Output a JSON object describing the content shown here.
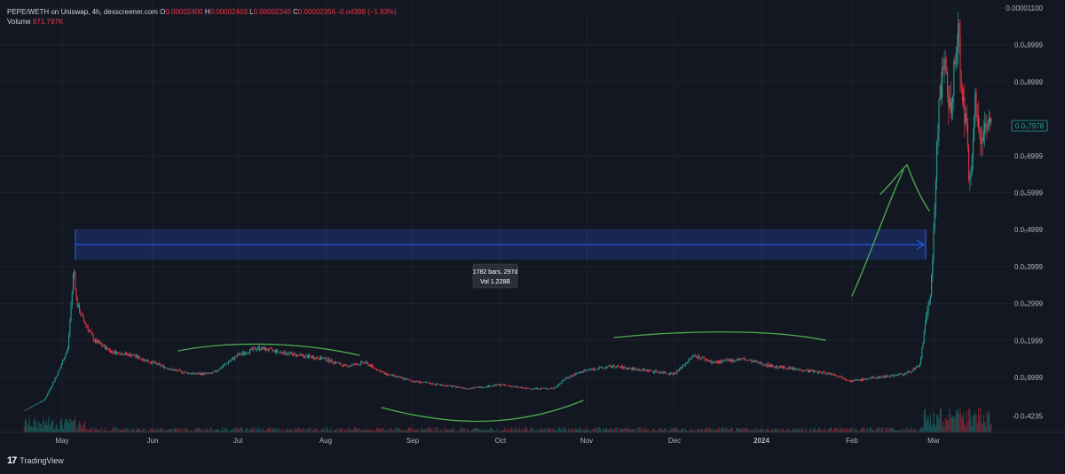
{
  "legend": {
    "symbol": "PEPE/WETH on Uniswap, 4h, dexscreener.com",
    "open_label": "O",
    "open": "0.00002400",
    "high_label": "H",
    "high": "0.00002403",
    "low_label": "L",
    "low": "0.00002340",
    "close_label": "C",
    "close": "0.00002356",
    "change": "-0.o4399 (−1.83%)",
    "volume_label": "Volume",
    "volume": "971.797K"
  },
  "footer": {
    "logo": "17",
    "brand": "TradingView"
  },
  "colors": {
    "background": "#131722",
    "up": "#26a69a",
    "down": "#f23645",
    "grid": "#1e222d",
    "annotation": "#4caf50",
    "measure": "#2962ff",
    "last_price": "#26a69a"
  },
  "measure": {
    "line1": "1782 bars, 297d",
    "line2": "Vol 1.228B"
  },
  "chart_data": {
    "type": "candlestick",
    "symbol": "PEPE/WETH",
    "timeframe": "4h",
    "x_ticks": [
      "May",
      "Jun",
      "Jul",
      "Aug",
      "Sep",
      "Oct",
      "Nov",
      "Dec",
      "2024",
      "Feb",
      "Mar"
    ],
    "y_ticks": [
      "0.00001100",
      "0.0₅9999",
      "0.0₅8999",
      "0.0₅6999",
      "0.0₅5999",
      "0.0₅4999",
      "0.0₅3999",
      "0.0₅2999",
      "0.0₅1999",
      "0.0₆9999",
      "-0.0₇4235"
    ],
    "y_tick_values": [
      1.1e-05,
      9.9999e-06,
      8.9999e-06,
      6.9999e-06,
      5.9999e-06,
      4.9999e-06,
      3.9999e-06,
      2.9999e-06,
      1.9999e-06,
      9.9999e-07,
      -4.235e-08
    ],
    "last_price_label": "0.0₅7978",
    "last_price": 7.978e-06,
    "ylim": [
      -2e-07,
      1.1e-05
    ],
    "close_series": [
      {
        "x": "Apr 18",
        "y": 1e-07
      },
      {
        "x": "Apr 25",
        "y": 4e-07
      },
      {
        "x": "Apr 30",
        "y": 1.2e-06
      },
      {
        "x": "May 3",
        "y": 1.8e-06
      },
      {
        "x": "May 5",
        "y": 4e-06
      },
      {
        "x": "May 6",
        "y": 3e-06
      },
      {
        "x": "May 8",
        "y": 2.6e-06
      },
      {
        "x": "May 12",
        "y": 2e-06
      },
      {
        "x": "May 18",
        "y": 1.7e-06
      },
      {
        "x": "May 25",
        "y": 1.6e-06
      },
      {
        "x": "Jun 1",
        "y": 1.4e-06
      },
      {
        "x": "Jun 8",
        "y": 1.2e-06
      },
      {
        "x": "Jun 15",
        "y": 1.1e-06
      },
      {
        "x": "Jun 22",
        "y": 1.1e-06
      },
      {
        "x": "Jul 1",
        "y": 1.6e-06
      },
      {
        "x": "Jul 8",
        "y": 1.8e-06
      },
      {
        "x": "Jul 15",
        "y": 1.7e-06
      },
      {
        "x": "Jul 22",
        "y": 1.6e-06
      },
      {
        "x": "Aug 1",
        "y": 1.5e-06
      },
      {
        "x": "Aug 8",
        "y": 1.3e-06
      },
      {
        "x": "Aug 15",
        "y": 1.4e-06
      },
      {
        "x": "Aug 22",
        "y": 1.1e-06
      },
      {
        "x": "Sep 1",
        "y": 9e-07
      },
      {
        "x": "Sep 10",
        "y": 8e-07
      },
      {
        "x": "Sep 20",
        "y": 7e-07
      },
      {
        "x": "Oct 1",
        "y": 8e-07
      },
      {
        "x": "Oct 10",
        "y": 7e-07
      },
      {
        "x": "Oct 20",
        "y": 7e-07
      },
      {
        "x": "Oct 25",
        "y": 1e-06
      },
      {
        "x": "Nov 1",
        "y": 1.2e-06
      },
      {
        "x": "Nov 10",
        "y": 1.3e-06
      },
      {
        "x": "Nov 20",
        "y": 1.2e-06
      },
      {
        "x": "Dec 1",
        "y": 1.1e-06
      },
      {
        "x": "Dec 8",
        "y": 1.6e-06
      },
      {
        "x": "Dec 15",
        "y": 1.4e-06
      },
      {
        "x": "Dec 25",
        "y": 1.5e-06
      },
      {
        "x": "Jan 5",
        "y": 1.3e-06
      },
      {
        "x": "Jan 15",
        "y": 1.2e-06
      },
      {
        "x": "Jan 25",
        "y": 1.1e-06
      },
      {
        "x": "Feb 1",
        "y": 9e-07
      },
      {
        "x": "Feb 10",
        "y": 1e-06
      },
      {
        "x": "Feb 20",
        "y": 1.1e-06
      },
      {
        "x": "Feb 25",
        "y": 1.3e-06
      },
      {
        "x": "Feb 27",
        "y": 2.4e-06
      },
      {
        "x": "Feb 29",
        "y": 3.4e-06
      },
      {
        "x": "Mar 1",
        "y": 4.8e-06
      },
      {
        "x": "Mar 2",
        "y": 6.8e-06
      },
      {
        "x": "Mar 3",
        "y": 8.7e-06
      },
      {
        "x": "Mar 5",
        "y": 9.3e-06
      },
      {
        "x": "Mar 7",
        "y": 8.2e-06
      },
      {
        "x": "Mar 9",
        "y": 9.6e-06
      },
      {
        "x": "Mar 10",
        "y": 1.05e-05
      },
      {
        "x": "Mar 11",
        "y": 9e-06
      },
      {
        "x": "Mar 13",
        "y": 7.6e-06
      },
      {
        "x": "Mar 14",
        "y": 6.2e-06
      },
      {
        "x": "Mar 16",
        "y": 8.5e-06
      },
      {
        "x": "Mar 18",
        "y": 7.4e-06
      },
      {
        "x": "Mar 20",
        "y": 8e-06
      },
      {
        "x": "Mar 22",
        "y": 7.978e-06
      }
    ]
  }
}
